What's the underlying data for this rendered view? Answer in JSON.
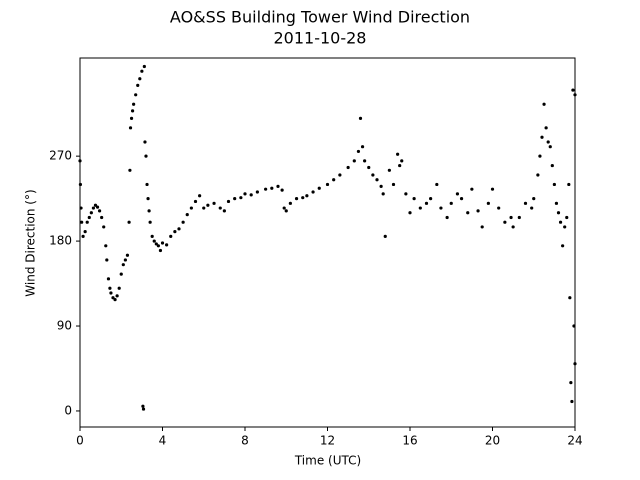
{
  "chart_data": {
    "type": "scatter",
    "title": "AO&SS Building Tower Wind Direction",
    "subtitle": "2011-10-28",
    "x_label": "Time (UTC)",
    "y_label": "Wind Direction (°)",
    "color": "#000000",
    "xlim": [
      0,
      24
    ],
    "xticks": [
      0,
      4,
      8,
      12,
      16,
      20,
      24
    ],
    "ylim": [
      -17,
      374
    ],
    "yticks": [
      0,
      90,
      180,
      270
    ],
    "x": [
      0,
      0.02,
      0.05,
      0.08,
      0.15,
      0.25,
      0.35,
      0.45,
      0.55,
      0.65,
      0.75,
      0.85,
      0.95,
      1.05,
      1.15,
      1.25,
      1.3,
      1.38,
      1.45,
      1.5,
      1.6,
      1.7,
      1.8,
      1.9,
      2.0,
      2.1,
      2.2,
      2.3,
      2.38,
      2.42,
      2.45,
      2.5,
      2.55,
      2.6,
      2.7,
      2.8,
      2.9,
      3.0,
      3.05,
      3.08,
      3.12,
      3.15,
      3.2,
      3.25,
      3.3,
      3.35,
      3.4,
      3.5,
      3.6,
      3.7,
      3.8,
      3.9,
      4.0,
      4.2,
      4.4,
      4.6,
      4.8,
      5.0,
      5.2,
      5.4,
      5.6,
      5.8,
      6.0,
      6.2,
      6.5,
      6.8,
      7.0,
      7.2,
      7.5,
      7.8,
      8.0,
      8.3,
      8.6,
      9.0,
      9.3,
      9.6,
      9.8,
      9.9,
      10.0,
      10.2,
      10.5,
      10.8,
      11.0,
      11.3,
      11.6,
      12.0,
      12.3,
      12.6,
      13.0,
      13.3,
      13.5,
      13.6,
      13.7,
      13.8,
      14.0,
      14.2,
      14.4,
      14.6,
      14.7,
      14.8,
      15.0,
      15.2,
      15.4,
      15.5,
      15.6,
      15.8,
      16.0,
      16.2,
      16.5,
      16.8,
      17.0,
      17.3,
      17.5,
      17.8,
      18.0,
      18.3,
      18.5,
      18.8,
      19.0,
      19.3,
      19.5,
      19.8,
      20.0,
      20.3,
      20.6,
      20.9,
      21.0,
      21.3,
      21.6,
      21.9,
      22.0,
      22.2,
      22.3,
      22.4,
      22.5,
      22.6,
      22.7,
      22.8,
      22.9,
      23.0,
      23.1,
      23.2,
      23.3,
      23.4,
      23.5,
      23.6,
      23.7,
      23.75,
      23.8,
      23.85,
      23.9,
      23.95,
      24.0,
      24.0
    ],
    "values": [
      265,
      240,
      215,
      200,
      185,
      190,
      200,
      205,
      210,
      215,
      218,
      216,
      212,
      205,
      195,
      175,
      160,
      140,
      130,
      125,
      120,
      118,
      122,
      130,
      145,
      155,
      160,
      165,
      200,
      255,
      300,
      310,
      318,
      325,
      335,
      345,
      352,
      360,
      5,
      2,
      365,
      285,
      270,
      240,
      225,
      212,
      200,
      185,
      180,
      177,
      175,
      170,
      178,
      176,
      185,
      190,
      193,
      200,
      208,
      215,
      222,
      228,
      215,
      218,
      220,
      215,
      212,
      222,
      225,
      226,
      230,
      229,
      232,
      235,
      236,
      238,
      234,
      215,
      212,
      220,
      225,
      226,
      228,
      232,
      236,
      240,
      245,
      250,
      258,
      265,
      275,
      310,
      280,
      265,
      258,
      250,
      245,
      238,
      230,
      185,
      255,
      240,
      272,
      260,
      265,
      230,
      210,
      225,
      215,
      220,
      225,
      240,
      215,
      205,
      220,
      230,
      225,
      210,
      235,
      212,
      195,
      220,
      235,
      215,
      200,
      205,
      195,
      205,
      220,
      215,
      225,
      250,
      270,
      290,
      325,
      300,
      285,
      280,
      260,
      240,
      220,
      210,
      200,
      175,
      195,
      205,
      240,
      120,
      30,
      10,
      340,
      90,
      50,
      335
    ]
  }
}
